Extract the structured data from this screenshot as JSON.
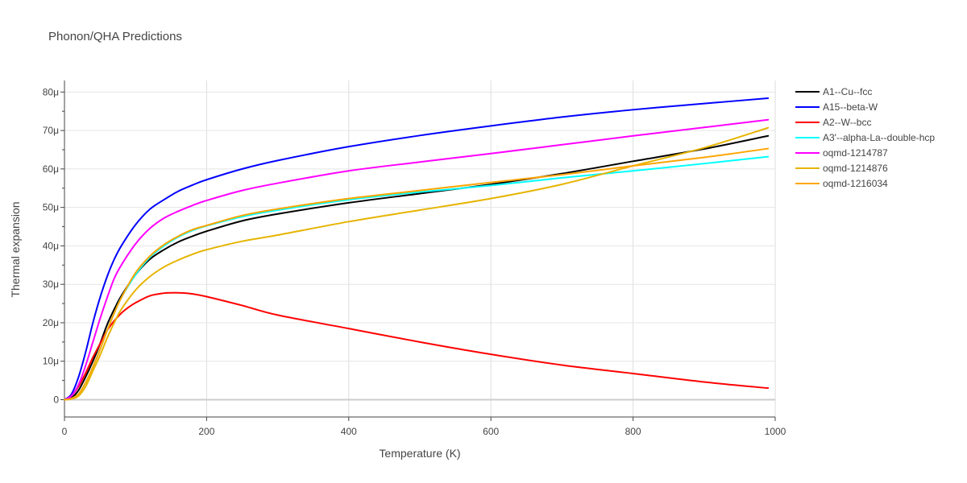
{
  "chart_data": {
    "type": "line",
    "title": "Phonon/QHA Predictions",
    "xlabel": "Temperature (K)",
    "ylabel": "Thermal expansion",
    "xlim": [
      0,
      1000
    ],
    "ylim": [
      -4.5e-06,
      8.3e-05
    ],
    "grid": true,
    "legend_position": "right",
    "x_ticks": [
      {
        "value": 0,
        "label": "0"
      },
      {
        "value": 200,
        "label": "200"
      },
      {
        "value": 400,
        "label": "400"
      },
      {
        "value": 600,
        "label": "600"
      },
      {
        "value": 800,
        "label": "800"
      },
      {
        "value": 1000,
        "label": "1000"
      }
    ],
    "y_ticks": [
      {
        "value": 0,
        "label": "0"
      },
      {
        "value": 1e-05,
        "label": "10μ"
      },
      {
        "value": 2e-05,
        "label": "20μ"
      },
      {
        "value": 3e-05,
        "label": "30μ"
      },
      {
        "value": 4e-05,
        "label": "40μ"
      },
      {
        "value": 5e-05,
        "label": "50μ"
      },
      {
        "value": 6e-05,
        "label": "60μ"
      },
      {
        "value": 7e-05,
        "label": "70μ"
      },
      {
        "value": 8e-05,
        "label": "80μ"
      }
    ],
    "series": [
      {
        "name": "A1--Cu--fcc",
        "color": "#000000",
        "x": [
          0,
          10,
          20,
          30,
          40,
          50,
          60,
          70,
          80,
          100,
          120,
          140,
          160,
          180,
          200,
          250,
          300,
          400,
          500,
          600,
          700,
          800,
          900,
          990
        ],
        "y": [
          0,
          5e-07,
          2.5e-06,
          6e-06,
          1e-05,
          1.45e-05,
          1.95e-05,
          2.35e-05,
          2.7e-05,
          3.25e-05,
          3.65e-05,
          3.9e-05,
          4.1e-05,
          4.25e-05,
          4.38e-05,
          4.65e-05,
          4.83e-05,
          5.12e-05,
          5.36e-05,
          5.6e-05,
          5.88e-05,
          6.2e-05,
          6.52e-05,
          6.86e-05
        ]
      },
      {
        "name": "A15--beta-W",
        "color": "#0000ff",
        "x": [
          0,
          10,
          20,
          30,
          40,
          50,
          60,
          70,
          80,
          100,
          120,
          140,
          160,
          180,
          200,
          250,
          300,
          400,
          500,
          600,
          700,
          800,
          900,
          990
        ],
        "y": [
          0,
          1.5e-06,
          6e-06,
          1.25e-05,
          2e-05,
          2.65e-05,
          3.2e-05,
          3.65e-05,
          4e-05,
          4.55e-05,
          4.95e-05,
          5.2e-05,
          5.42e-05,
          5.58e-05,
          5.72e-05,
          6e-05,
          6.22e-05,
          6.58e-05,
          6.87e-05,
          7.12e-05,
          7.35e-05,
          7.54e-05,
          7.7e-05,
          7.84e-05
        ]
      },
      {
        "name": "A2--W--bcc",
        "color": "#ff0000",
        "x": [
          0,
          10,
          20,
          30,
          40,
          50,
          60,
          70,
          80,
          90,
          100,
          120,
          140,
          150,
          160,
          170,
          180,
          200,
          250,
          300,
          400,
          500,
          600,
          700,
          800,
          900,
          990
        ],
        "y": [
          0,
          1e-06,
          3.5e-06,
          7e-06,
          1.1e-05,
          1.45e-05,
          1.8e-05,
          2.05e-05,
          2.25e-05,
          2.4e-05,
          2.52e-05,
          2.7e-05,
          2.77e-05,
          2.78e-05,
          2.78e-05,
          2.77e-05,
          2.75e-05,
          2.68e-05,
          2.45e-05,
          2.2e-05,
          1.85e-05,
          1.5e-05,
          1.18e-05,
          9e-06,
          6.8e-06,
          4.6e-06,
          3e-06
        ]
      },
      {
        "name": "A3'--alpha-La--double-hcp",
        "color": "#00ffff",
        "x": [
          0,
          10,
          20,
          30,
          40,
          50,
          60,
          70,
          80,
          100,
          120,
          140,
          160,
          180,
          200,
          250,
          300,
          400,
          500,
          600,
          700,
          800,
          900,
          990
        ],
        "y": [
          0,
          3e-07,
          1.5e-06,
          4.5e-06,
          8.5e-06,
          1.3e-05,
          1.8e-05,
          2.25e-05,
          2.65e-05,
          3.25e-05,
          3.7e-05,
          4e-05,
          4.23e-05,
          4.4e-05,
          4.52e-05,
          4.76e-05,
          4.93e-05,
          5.2e-05,
          5.4e-05,
          5.57e-05,
          5.77e-05,
          5.95e-05,
          6.14e-05,
          6.32e-05
        ]
      },
      {
        "name": "oqmd-1214787",
        "color": "#ff00ff",
        "x": [
          0,
          10,
          20,
          30,
          40,
          50,
          60,
          70,
          80,
          100,
          120,
          140,
          160,
          180,
          200,
          250,
          300,
          400,
          500,
          600,
          700,
          800,
          900,
          990
        ],
        "y": [
          0,
          1e-06,
          4e-06,
          9e-06,
          1.5e-05,
          2.1e-05,
          2.65e-05,
          3.15e-05,
          3.5e-05,
          4.05e-05,
          4.45e-05,
          4.72e-05,
          4.9e-05,
          5.05e-05,
          5.18e-05,
          5.44e-05,
          5.63e-05,
          5.95e-05,
          6.18e-05,
          6.4e-05,
          6.63e-05,
          6.86e-05,
          7.08e-05,
          7.28e-05
        ]
      },
      {
        "name": "oqmd-1214876",
        "color": "#e6b400",
        "x": [
          0,
          10,
          20,
          30,
          40,
          50,
          60,
          70,
          80,
          100,
          120,
          140,
          160,
          180,
          200,
          250,
          300,
          400,
          500,
          600,
          700,
          800,
          900,
          990
        ],
        "y": [
          0,
          2e-07,
          1e-06,
          3.5e-06,
          7.5e-06,
          1.15e-05,
          1.6e-05,
          2e-05,
          2.35e-05,
          2.85e-05,
          3.2e-05,
          3.45e-05,
          3.63e-05,
          3.78e-05,
          3.9e-05,
          4.12e-05,
          4.28e-05,
          4.63e-05,
          4.93e-05,
          5.23e-05,
          5.6e-05,
          6.08e-05,
          6.55e-05,
          7.07e-05
        ]
      },
      {
        "name": "oqmd-1216034",
        "color": "#ffa500",
        "x": [
          0,
          10,
          20,
          30,
          40,
          50,
          60,
          70,
          80,
          100,
          120,
          140,
          160,
          180,
          200,
          250,
          300,
          400,
          500,
          600,
          700,
          800,
          900,
          990
        ],
        "y": [
          0,
          3e-07,
          1.5e-06,
          4.5e-06,
          8.5e-06,
          1.3e-05,
          1.8e-05,
          2.25e-05,
          2.65e-05,
          3.3e-05,
          3.73e-05,
          4.03e-05,
          4.25e-05,
          4.42e-05,
          4.53e-05,
          4.79e-05,
          4.96e-05,
          5.23e-05,
          5.44e-05,
          5.65e-05,
          5.85e-05,
          6.08e-05,
          6.3e-05,
          6.53e-05
        ]
      }
    ]
  }
}
